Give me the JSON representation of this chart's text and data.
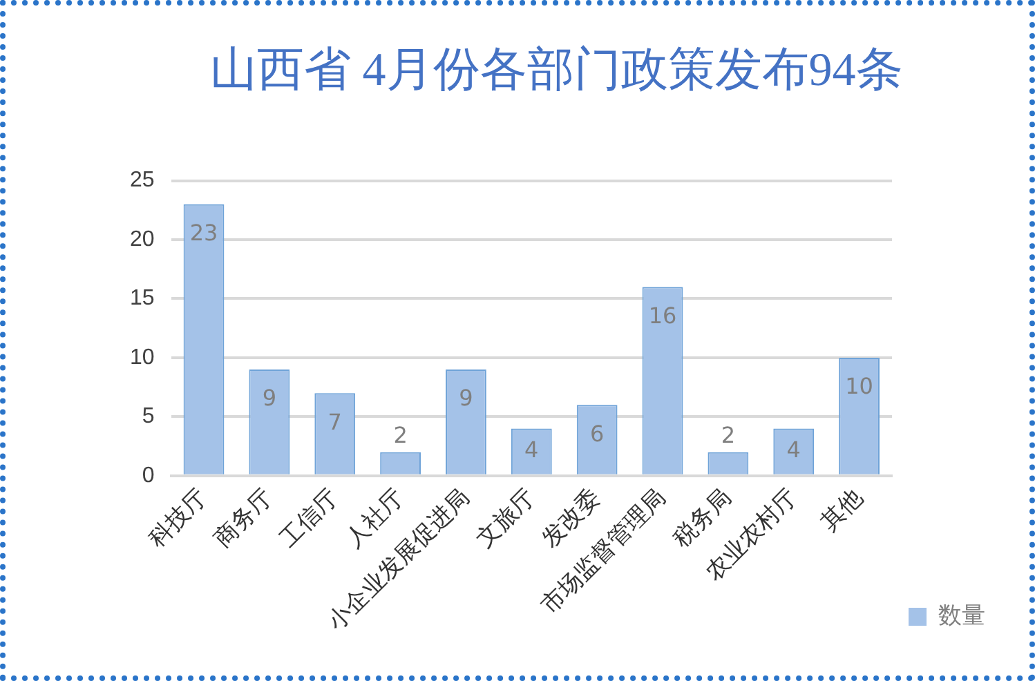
{
  "chart_data": {
    "type": "bar",
    "title": "山西省 4月份各部门政策发布94条",
    "categories": [
      "科技厅",
      "商务厅",
      "工信厅",
      "人社厅",
      "小企业发展促进局",
      "文旅厅",
      "发改委",
      "市场监督管理局",
      "税务局",
      "农业农村厅",
      "其他"
    ],
    "series": [
      {
        "name": "数量",
        "color": "#a4c2e8",
        "values": [
          23,
          9,
          7,
          2,
          9,
          4,
          6,
          16,
          2,
          4,
          10
        ]
      }
    ],
    "ylim": [
      0,
      25
    ],
    "yticks": [
      0,
      5,
      10,
      15,
      20,
      25
    ],
    "grid": "y",
    "legend": "bottom right",
    "data_labels": true
  }
}
